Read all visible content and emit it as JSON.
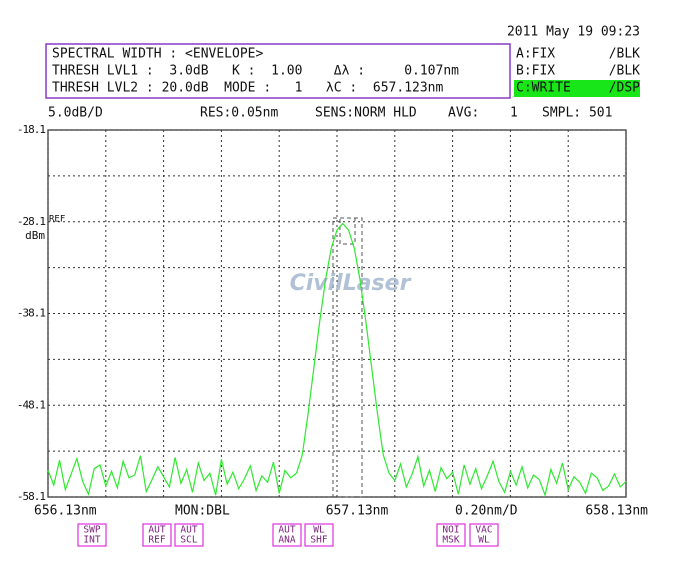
{
  "header": {
    "date": "2011 May 19 09:23",
    "info_lines": [
      "SPECTRAL WIDTH : <ENVELOPE>",
      "THRESH LVL1 :  3.0dB   K :  1.00    Δλ :     0.107nm",
      "THRESH LVL2 : 20.0dB  MODE :   1   λC :  657.123nm"
    ],
    "traces": [
      {
        "label": "A:FIX",
        "mode": "/BLK",
        "color": "#1a3cff"
      },
      {
        "label": "B:FIX",
        "mode": "/BLK",
        "color": "#ff2020"
      },
      {
        "label": "C:WRITE",
        "mode": "/DSP",
        "color": "#19e619"
      }
    ],
    "status": [
      "5.0dB/D",
      "RES:0.05nm",
      "SENS:NORM HLD",
      "AVG:",
      "1",
      "SMPL: 501"
    ]
  },
  "chart_data": {
    "type": "line",
    "ylim": [
      -58.1,
      -18.1
    ],
    "yticks": [
      -18.1,
      -28.1,
      -38.1,
      -48.1,
      -58.1
    ],
    "ygrid": [
      -18.1,
      -23.1,
      -28.1,
      -33.1,
      -38.1,
      -43.1,
      -48.1,
      -53.1,
      -58.1
    ],
    "xlim": [
      656.13,
      658.13
    ],
    "xticks": [
      {
        "value": 656.13,
        "label": "656.13nm"
      },
      {
        "value": 657.13,
        "label": "657.13nm"
      },
      {
        "value": 658.13,
        "label": "658.13nm"
      }
    ],
    "xgrid": [
      656.13,
      656.33,
      656.53,
      656.73,
      656.93,
      657.13,
      657.33,
      657.53,
      657.73,
      657.93,
      658.13
    ],
    "ref_label": "REF",
    "unit_label": "dBm",
    "monitor": "MON:DBL",
    "span_label": "0.20nm/D",
    "watermark": "CivilLaser",
    "grid": true,
    "x": [
      656.13,
      656.15,
      656.17,
      656.19,
      656.21,
      656.23,
      656.25,
      656.27,
      656.29,
      656.31,
      656.33,
      656.35,
      656.37,
      656.39,
      656.41,
      656.43,
      656.45,
      656.47,
      656.49,
      656.51,
      656.53,
      656.55,
      656.57,
      656.59,
      656.61,
      656.63,
      656.65,
      656.67,
      656.69,
      656.71,
      656.73,
      656.75,
      656.77,
      656.79,
      656.81,
      656.83,
      656.85,
      656.87,
      656.89,
      656.91,
      656.93,
      656.95,
      656.97,
      656.99,
      657.01,
      657.03,
      657.05,
      657.07,
      657.09,
      657.11,
      657.13,
      657.15,
      657.17,
      657.19,
      657.21,
      657.23,
      657.25,
      657.27,
      657.29,
      657.31,
      657.33,
      657.35,
      657.37,
      657.39,
      657.41,
      657.43,
      657.45,
      657.47,
      657.49,
      657.51,
      657.53,
      657.55,
      657.57,
      657.59,
      657.61,
      657.63,
      657.65,
      657.67,
      657.69,
      657.71,
      657.73,
      657.75,
      657.77,
      657.79,
      657.81,
      657.83,
      657.85,
      657.87,
      657.89,
      657.91,
      657.93,
      657.95,
      657.97,
      657.99,
      658.01,
      658.03,
      658.05,
      658.07,
      658.09,
      658.11,
      658.13
    ],
    "series": [
      {
        "color": "#2ee82e",
        "values": [
          -55.2,
          -56.8,
          -54.1,
          -57.3,
          -55.6,
          -53.9,
          -56.4,
          -57.8,
          -55.0,
          -54.6,
          -56.9,
          -55.3,
          -57.1,
          -54.2,
          -56.0,
          -55.7,
          -53.6,
          -57.5,
          -56.2,
          -54.8,
          -55.9,
          -57.0,
          -53.8,
          -56.6,
          -55.1,
          -57.6,
          -54.4,
          -56.3,
          -55.5,
          -57.9,
          -54.0,
          -56.7,
          -55.4,
          -57.2,
          -56.1,
          -54.7,
          -57.4,
          -55.8,
          -56.5,
          -54.3,
          -57.7,
          -55.2,
          -56.0,
          -55.5,
          -53.5,
          -49,
          -44,
          -39,
          -34.5,
          -31,
          -29,
          -28.3,
          -29,
          -31,
          -34.5,
          -39,
          -44,
          -49,
          -53.5,
          -55.5,
          -56.3,
          -54.5,
          -57.0,
          -55.6,
          -53.7,
          -56.9,
          -55.2,
          -57.5,
          -54.9,
          -56.1,
          -55.4,
          -57.8,
          -54.6,
          -56.7,
          -55.0,
          -57.2,
          -55.8,
          -54.2,
          -56.4,
          -57.6,
          -55.3,
          -56.8,
          -54.8,
          -57.1,
          -55.7,
          -56.2,
          -57.9,
          -55.1,
          -56.6,
          -54.4,
          -57.3,
          -55.9,
          -56.5,
          -57.7,
          -55.5,
          -56.0,
          -57.4,
          -56.9,
          -55.6,
          -57.0,
          -56.4
        ]
      }
    ]
  },
  "softkeys": [
    [
      "SWP",
      "INT"
    ],
    [
      "AUT",
      "REF"
    ],
    [
      "AUT",
      "SCL"
    ],
    [
      "AUT",
      "ANA"
    ],
    [
      "WL",
      "SHF"
    ],
    [
      "NOI",
      "MSK"
    ],
    [
      "VAC",
      "WL"
    ]
  ]
}
